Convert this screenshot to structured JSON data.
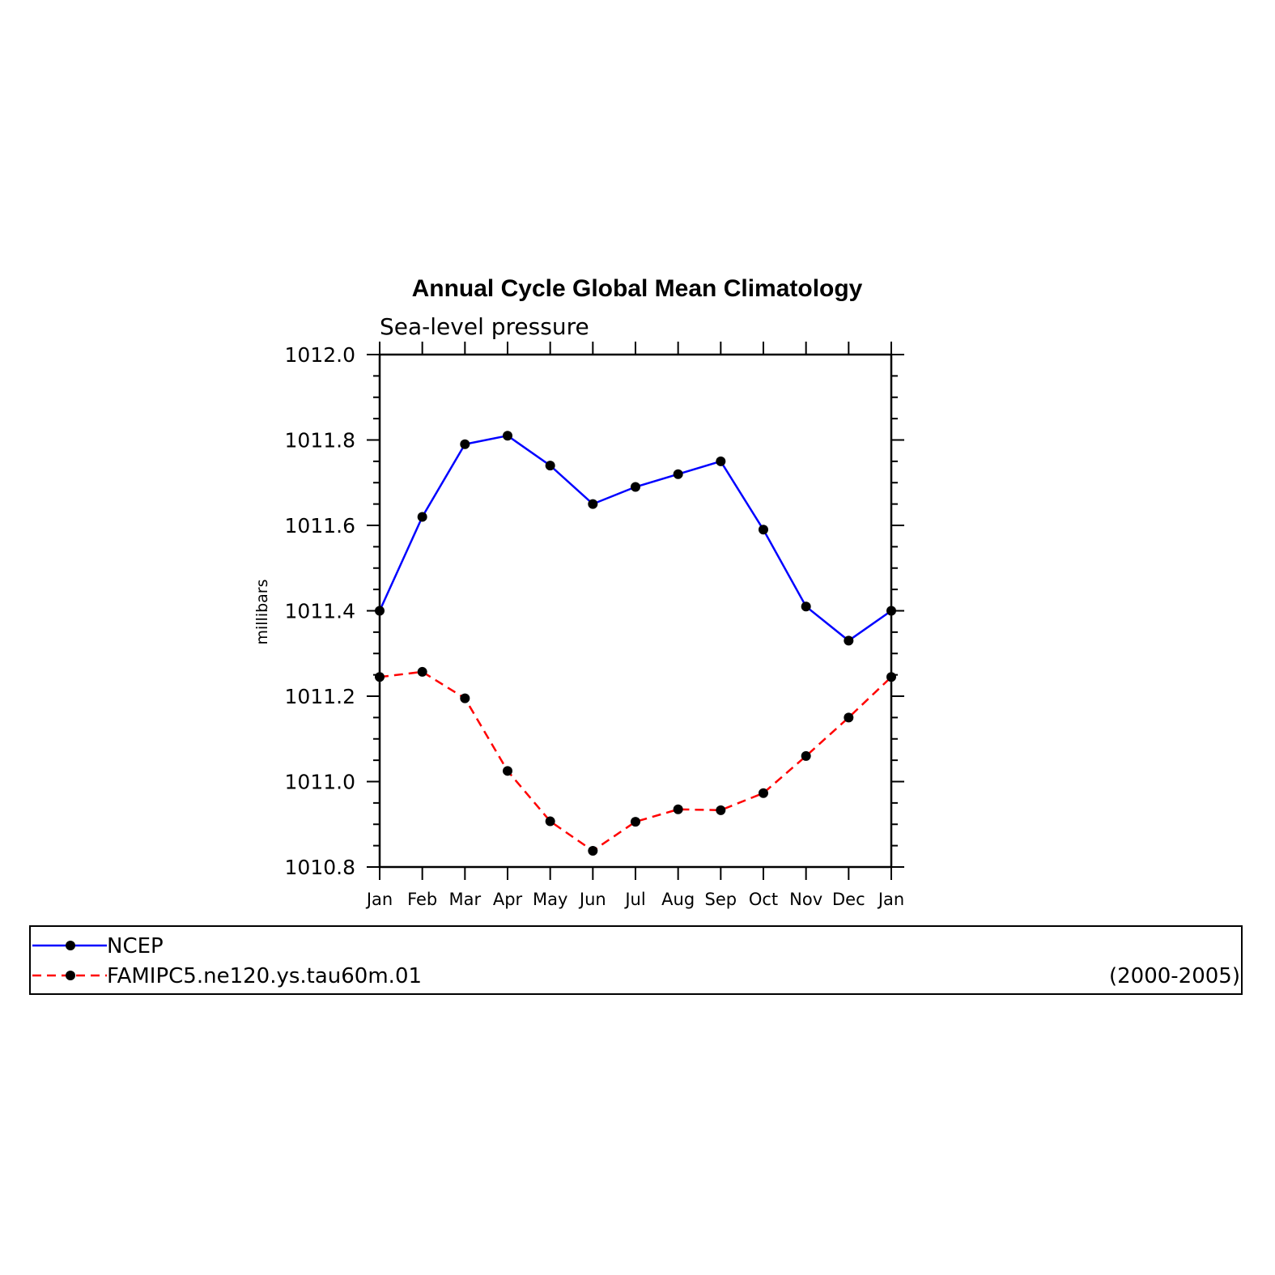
{
  "chart_data": {
    "type": "line",
    "title": "Annual Cycle Global Mean Climatology",
    "subtitle": "Sea-level pressure",
    "xlabel": "",
    "ylabel": "millibars",
    "categories": [
      "Jan",
      "Feb",
      "Mar",
      "Apr",
      "May",
      "Jun",
      "Jul",
      "Aug",
      "Sep",
      "Oct",
      "Nov",
      "Dec",
      "Jan"
    ],
    "ylim": [
      1010.8,
      1012.0
    ],
    "yticks": [
      "1010.8",
      "1011.0",
      "1011.2",
      "1011.4",
      "1011.6",
      "1011.8",
      "1012.0"
    ],
    "ytick_values": [
      1010.8,
      1011.0,
      1011.2,
      1011.4,
      1011.6,
      1011.8,
      1012.0
    ],
    "grid": false,
    "legend_position": "bottom",
    "period": "(2000-2005)",
    "series": [
      {
        "name": "NCEP",
        "color": "#0000ff",
        "line_style": "solid",
        "marker_color": "#000000",
        "values": [
          1011.4,
          1011.62,
          1011.79,
          1011.81,
          1011.74,
          1011.65,
          1011.69,
          1011.72,
          1011.75,
          1011.59,
          1011.41,
          1011.33,
          1011.4
        ]
      },
      {
        "name": "FAMIPC5.ne120.ys.tau60m.01",
        "color": "#ff0000",
        "line_style": "dashed",
        "marker_color": "#000000",
        "values": [
          1011.245,
          1011.257,
          1011.195,
          1011.025,
          1010.907,
          1010.838,
          1010.906,
          1010.935,
          1010.933,
          1010.973,
          1011.06,
          1011.15,
          1011.245
        ]
      }
    ]
  }
}
